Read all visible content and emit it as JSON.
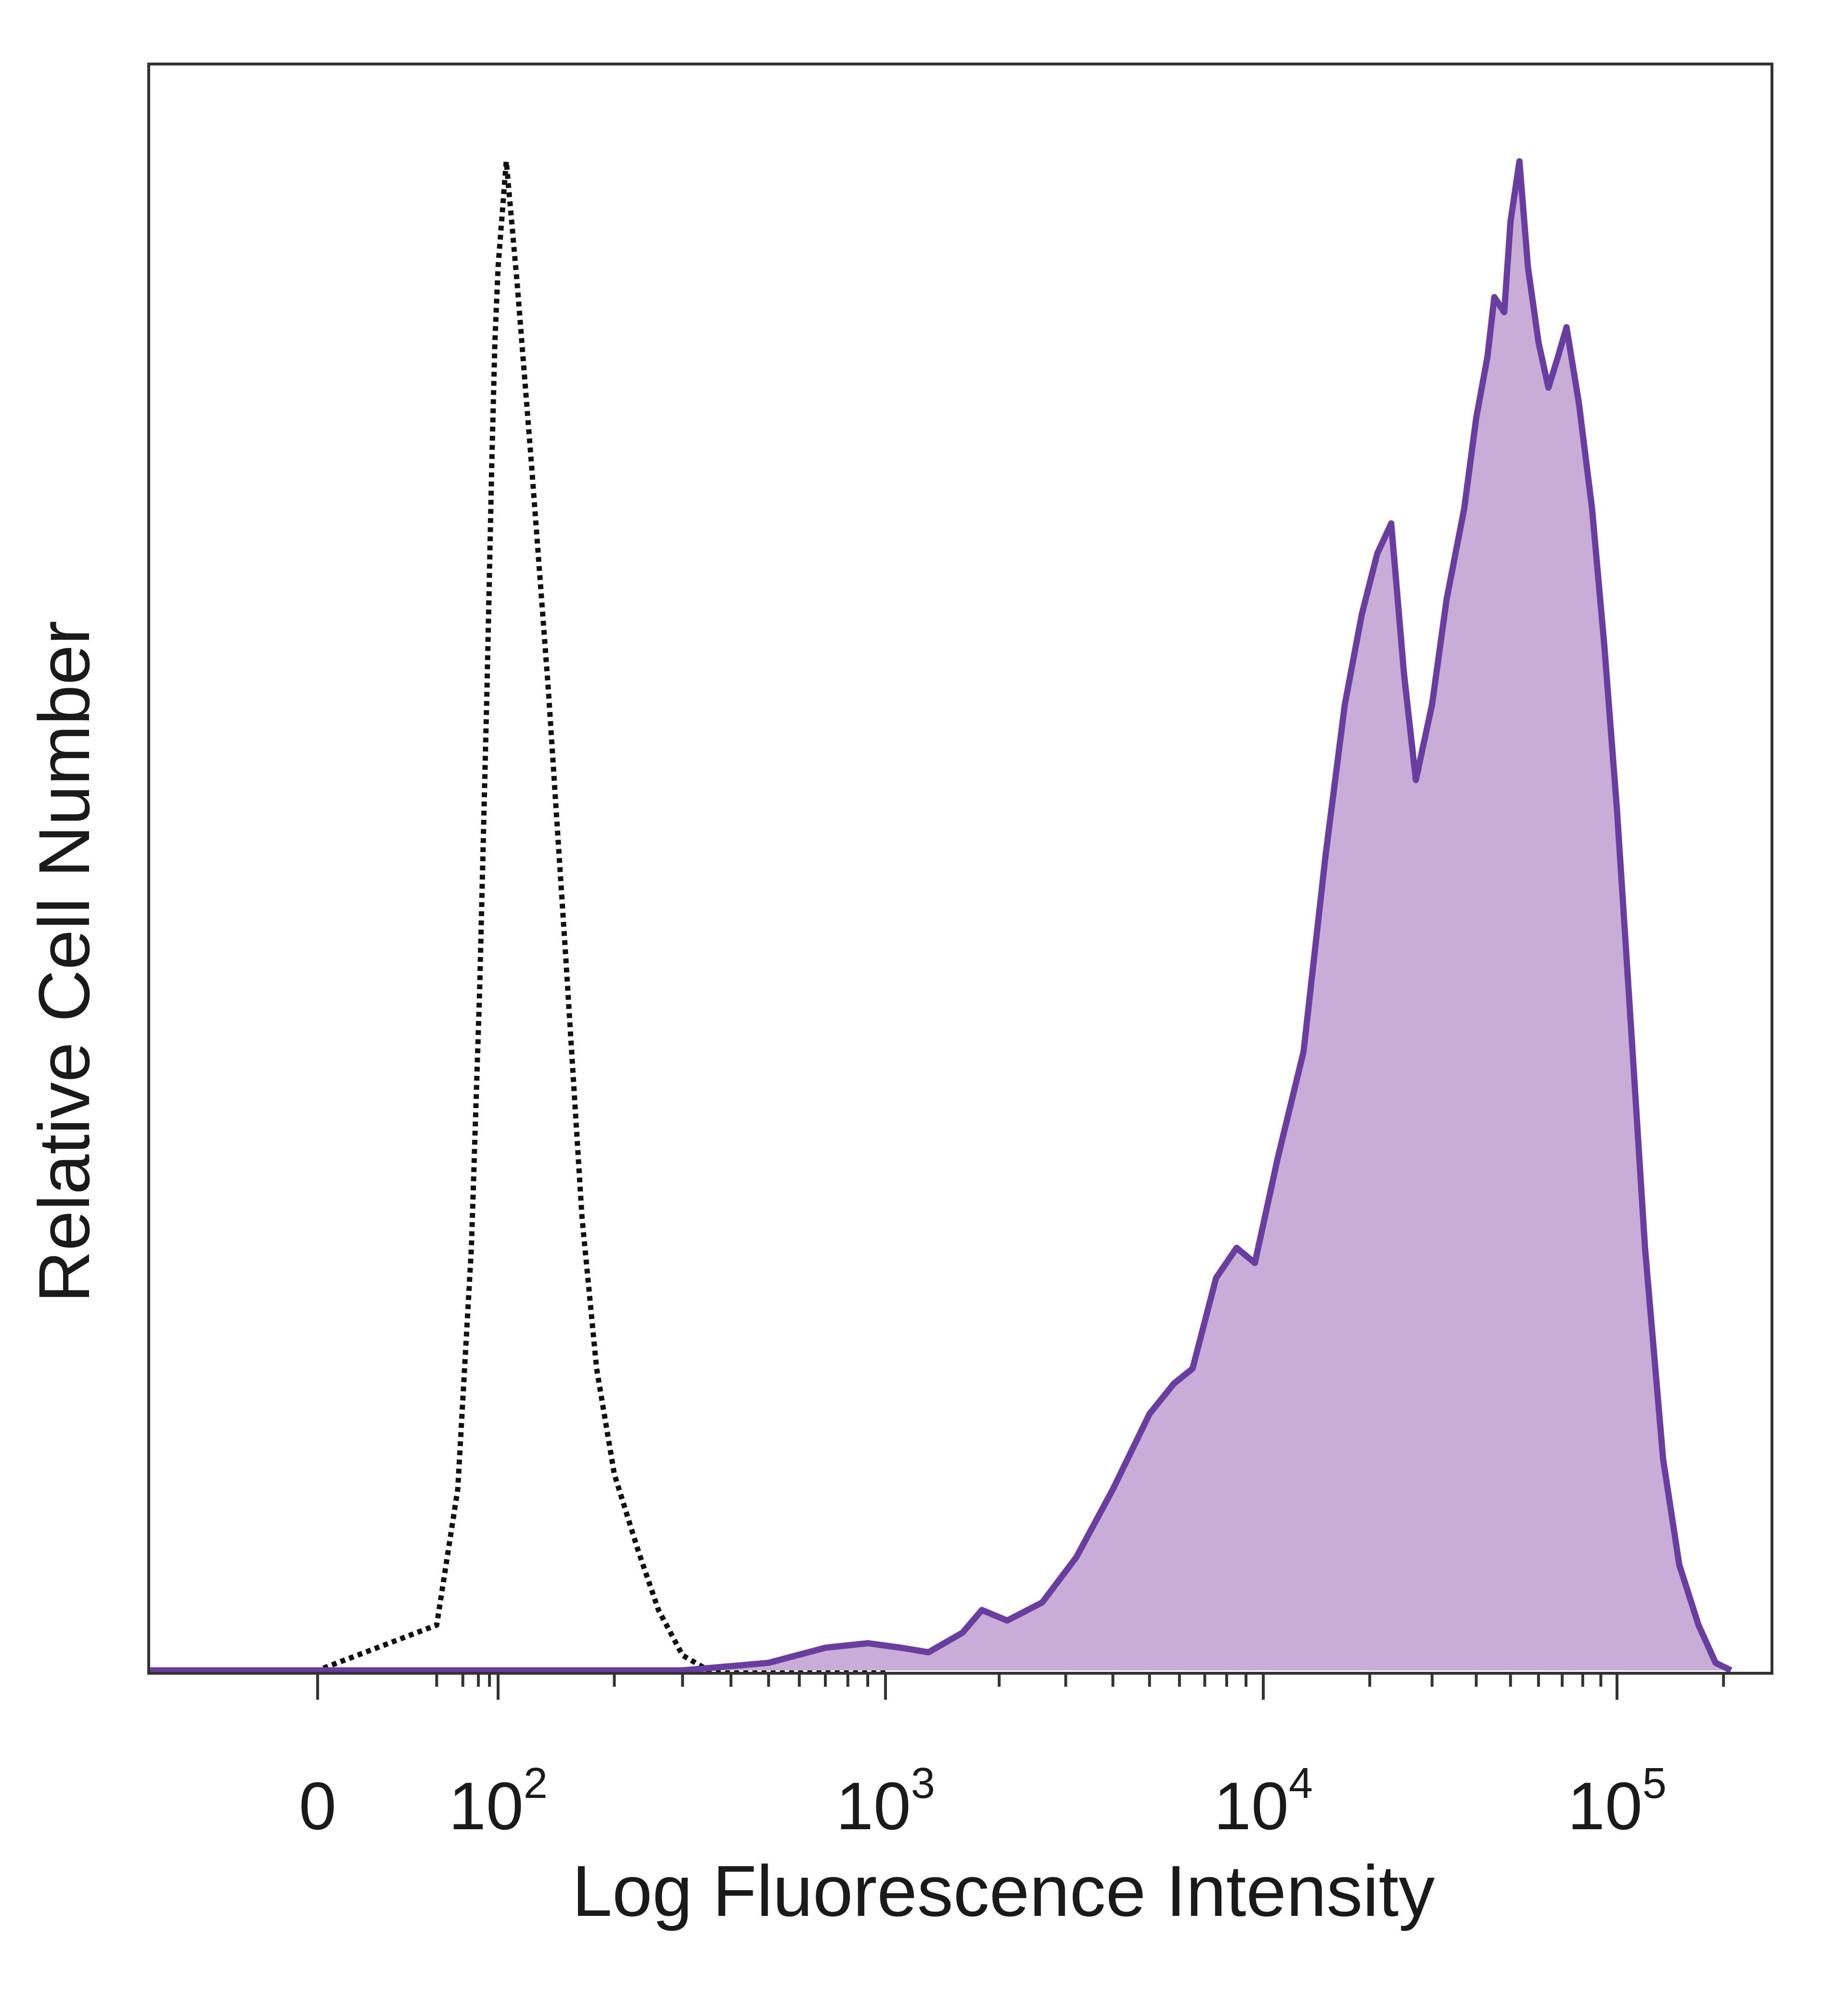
{
  "chart_data": {
    "type": "area",
    "title": "",
    "xlabel": "Log Fluorescence Intensity",
    "ylabel": "Relative Cell Number",
    "x_scale": "biexponential",
    "y_range": [
      0,
      100
    ],
    "grid": false,
    "legend": "none",
    "x_ticks": [
      {
        "value": 0,
        "base": "0",
        "exp": ""
      },
      {
        "value": 100,
        "base": "10",
        "exp": "2"
      },
      {
        "value": 1000,
        "base": "10",
        "exp": "3"
      },
      {
        "value": 10000,
        "base": "10",
        "exp": "4"
      },
      {
        "value": 100000,
        "base": "10",
        "exp": "5"
      }
    ],
    "series": [
      {
        "style": "dotted-outline",
        "color": "#111111",
        "points": [
          [
            -60,
            0
          ],
          [
            0,
            0
          ],
          [
            20,
            3
          ],
          [
            35,
            12
          ],
          [
            50,
            28
          ],
          [
            62,
            45
          ],
          [
            75,
            65
          ],
          [
            85,
            80
          ],
          [
            92,
            88
          ],
          [
            100,
            93
          ],
          [
            105,
            100
          ],
          [
            112,
            92
          ],
          [
            122,
            80
          ],
          [
            135,
            65
          ],
          [
            150,
            47
          ],
          [
            165,
            30
          ],
          [
            180,
            20
          ],
          [
            200,
            13
          ],
          [
            230,
            8
          ],
          [
            260,
            4
          ],
          [
            300,
            1
          ],
          [
            350,
            0
          ],
          [
            500,
            0
          ],
          [
            1000,
            0
          ]
        ]
      },
      {
        "style": "filled",
        "color": "#6a3ea1",
        "fill": "#c8aed6",
        "points": [
          [
            -60,
            0
          ],
          [
            300,
            0
          ],
          [
            500,
            0.5
          ],
          [
            700,
            1.5
          ],
          [
            900,
            1.8
          ],
          [
            1100,
            1.5
          ],
          [
            1300,
            1.2
          ],
          [
            1600,
            2.5
          ],
          [
            1800,
            4
          ],
          [
            2100,
            3.3
          ],
          [
            2600,
            4.5
          ],
          [
            3200,
            7.5
          ],
          [
            4000,
            12
          ],
          [
            5000,
            17
          ],
          [
            5800,
            19
          ],
          [
            6500,
            20
          ],
          [
            7500,
            26
          ],
          [
            8500,
            28
          ],
          [
            9500,
            27
          ],
          [
            11000,
            34
          ],
          [
            13000,
            41
          ],
          [
            15000,
            54
          ],
          [
            17000,
            64
          ],
          [
            19000,
            70
          ],
          [
            21000,
            74
          ],
          [
            23000,
            76
          ],
          [
            25000,
            66
          ],
          [
            27000,
            59
          ],
          [
            30000,
            64
          ],
          [
            33000,
            71
          ],
          [
            37000,
            77
          ],
          [
            40000,
            83
          ],
          [
            43000,
            87
          ],
          [
            45000,
            91
          ],
          [
            48000,
            90
          ],
          [
            50000,
            96
          ],
          [
            53000,
            100
          ],
          [
            56000,
            93
          ],
          [
            60000,
            88
          ],
          [
            64000,
            85
          ],
          [
            68000,
            87
          ],
          [
            72000,
            89
          ],
          [
            78000,
            84
          ],
          [
            85000,
            77
          ],
          [
            92000,
            68
          ],
          [
            100000,
            57
          ],
          [
            110000,
            42
          ],
          [
            120000,
            28
          ],
          [
            135000,
            14
          ],
          [
            150000,
            7
          ],
          [
            170000,
            3
          ],
          [
            190000,
            0.5
          ],
          [
            210000,
            0
          ]
        ]
      }
    ]
  }
}
